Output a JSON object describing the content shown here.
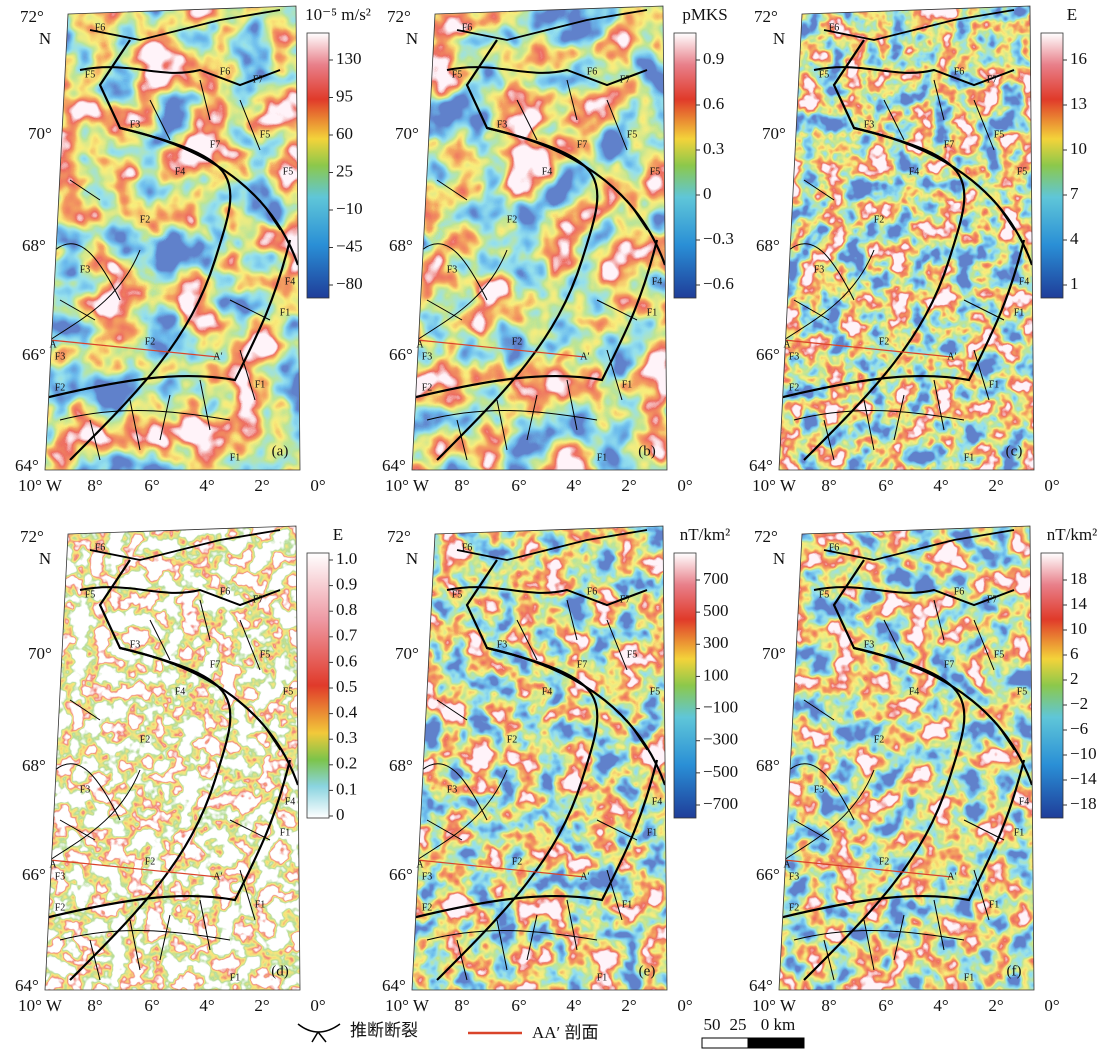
{
  "map_labels": {
    "lat": [
      "72°",
      "70°",
      "68°",
      "66°",
      "64°"
    ],
    "north": "N",
    "lon": [
      "10° W",
      "8°",
      "6°",
      "4°",
      "2°",
      "0°"
    ],
    "faults": [
      "F6",
      "F5",
      "F6",
      "F7",
      "F3",
      "F5",
      "F7",
      "F4",
      "F5",
      "F2",
      "F3",
      "F4",
      "F1",
      "F2",
      "A",
      "A′",
      "F3",
      "F1",
      "F2",
      "F1"
    ]
  },
  "panels": [
    {
      "letter": "(a)",
      "unit": "10⁻⁵ m/s²",
      "colorbar_ticks": [
        "130",
        "95",
        "60",
        "25",
        "−10",
        "−45",
        "−80"
      ]
    },
    {
      "letter": "(b)",
      "unit": "pMKS",
      "colorbar_ticks": [
        "0.9",
        "0.6",
        "0.3",
        "0",
        "−0.3",
        "−0.6"
      ]
    },
    {
      "letter": "(c)",
      "unit": "E",
      "colorbar_ticks": [
        "16",
        "13",
        "10",
        "7",
        "4",
        "1"
      ]
    },
    {
      "letter": "(d)",
      "unit": "E",
      "colorbar_ticks": [
        "1.0",
        "0.9",
        "0.8",
        "0.7",
        "0.6",
        "0.5",
        "0.4",
        "0.3",
        "0.2",
        "0.1",
        "0"
      ]
    },
    {
      "letter": "(e)",
      "unit": "nT/km²",
      "colorbar_ticks": [
        "700",
        "500",
        "300",
        "100",
        "−100",
        "−300",
        "−500",
        "−700"
      ]
    },
    {
      "letter": "(f)",
      "unit": "nT/km²",
      "colorbar_ticks": [
        "18",
        "14",
        "10",
        "6",
        "2",
        "−2",
        "−6",
        "−10",
        "−14",
        "−18"
      ]
    }
  ],
  "legend": {
    "fault": "推断断裂",
    "profile": "AA′ 剖面",
    "scale": [
      "50",
      "25",
      "0 km"
    ]
  }
}
